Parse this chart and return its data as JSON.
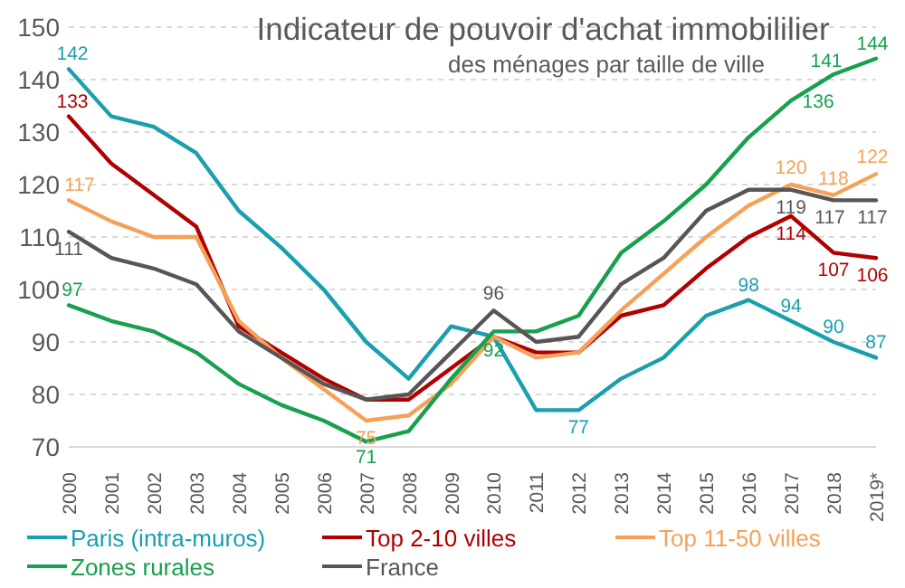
{
  "chart_data": {
    "type": "line",
    "title": "Indicateur de pouvoir d'achat immobililier",
    "subtitle": "des ménages par taille de ville",
    "categories": [
      "2000",
      "2001",
      "2002",
      "2003",
      "2004",
      "2005",
      "2006",
      "2007",
      "2008",
      "2009",
      "2010",
      "2011",
      "2012",
      "2013",
      "2014",
      "2015",
      "2016",
      "2017",
      "2018",
      "2019*"
    ],
    "series": [
      {
        "name": "Paris (intra-muros)",
        "color": "#1a9fae",
        "values": [
          142,
          133,
          131,
          126,
          115,
          108,
          100,
          90,
          83,
          93,
          91,
          77,
          77,
          83,
          87,
          95,
          98,
          94,
          90,
          87
        ],
        "value_labels": [
          "142",
          null,
          null,
          null,
          null,
          null,
          null,
          null,
          null,
          null,
          null,
          null,
          "77",
          null,
          null,
          null,
          "98",
          "94",
          "90",
          "87"
        ]
      },
      {
        "name": "Top 2-10 villes",
        "color": "#b00000",
        "values": [
          133,
          124,
          118,
          112,
          93,
          88,
          83,
          79,
          79,
          85,
          91,
          88,
          88,
          95,
          97,
          104,
          110,
          114,
          107,
          106
        ],
        "value_labels": [
          "133",
          null,
          null,
          null,
          null,
          null,
          null,
          null,
          null,
          null,
          null,
          null,
          null,
          null,
          null,
          null,
          null,
          "114",
          "107",
          "106"
        ]
      },
      {
        "name": "Top 11-50 villes",
        "color": "#f4a25a",
        "values": [
          117,
          113,
          110,
          110,
          94,
          87,
          81,
          75,
          76,
          82,
          91,
          87,
          88,
          96,
          103,
          110,
          116,
          120,
          118,
          122
        ],
        "value_labels": [
          "117",
          null,
          null,
          null,
          null,
          null,
          null,
          "75",
          null,
          null,
          null,
          null,
          null,
          null,
          null,
          null,
          null,
          "120",
          "118",
          "122"
        ]
      },
      {
        "name": "Zones rurales",
        "color": "#17a04e",
        "values": [
          97,
          94,
          92,
          88,
          82,
          78,
          75,
          71,
          73,
          83,
          92,
          92,
          95,
          107,
          113,
          120,
          129,
          136,
          141,
          144
        ],
        "value_labels": [
          "97",
          null,
          null,
          null,
          null,
          null,
          null,
          "71",
          null,
          null,
          "92",
          null,
          null,
          null,
          null,
          null,
          null,
          "136",
          "141",
          "144"
        ]
      },
      {
        "name": "France",
        "color": "#5a5555",
        "values": [
          111,
          106,
          104,
          101,
          92,
          87,
          82,
          79,
          80,
          88,
          96,
          90,
          91,
          101,
          106,
          115,
          119,
          119,
          117,
          117
        ],
        "value_labels": [
          "111",
          null,
          null,
          null,
          null,
          null,
          null,
          null,
          null,
          null,
          "96",
          null,
          null,
          null,
          null,
          null,
          null,
          "119",
          "117",
          "117"
        ]
      }
    ],
    "ylim": [
      70,
      150
    ],
    "yticks": [
      70,
      80,
      90,
      100,
      110,
      120,
      130,
      140,
      150
    ],
    "grid": "y",
    "legend": "bottom",
    "marker": "none",
    "line_style": "solid"
  }
}
